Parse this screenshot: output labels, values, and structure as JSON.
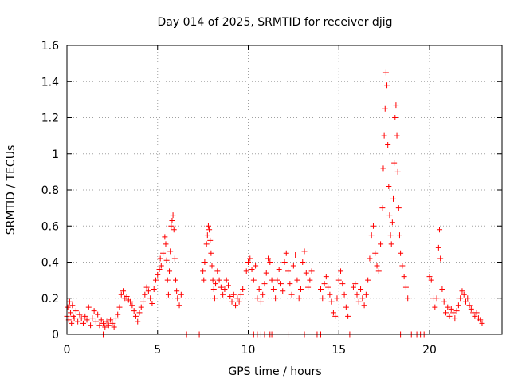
{
  "chart_data": {
    "type": "scatter",
    "title": "Day 014 of 2025, SRMTID for receiver djig",
    "xlabel": "GPS time / hours",
    "ylabel": "SRMTID / TECUs",
    "xlim": [
      0,
      24
    ],
    "ylim": [
      0,
      1.6
    ],
    "xticks": [
      0,
      5,
      10,
      15,
      20
    ],
    "xtick_labels": [
      "0",
      "5",
      "10",
      "15",
      "20"
    ],
    "yticks": [
      0,
      0.2,
      0.4,
      0.6,
      0.8,
      1.0,
      1.2,
      1.4,
      1.6
    ],
    "ytick_labels": [
      "0",
      "0.2",
      "0.4",
      "0.6",
      "0.8",
      "1",
      "1.2",
      "1.4",
      "1.6"
    ],
    "grid": true,
    "marker": "+",
    "series": [
      {
        "name": "SRMTID",
        "color": "#ff0000",
        "points": [
          [
            0.0,
            0.1
          ],
          [
            0.05,
            0.15
          ],
          [
            0.1,
            0.08
          ],
          [
            0.15,
            0.18
          ],
          [
            0.2,
            0.12
          ],
          [
            0.25,
            0.06
          ],
          [
            0.3,
            0.16
          ],
          [
            0.35,
            0.1
          ],
          [
            0.4,
            0.09
          ],
          [
            0.5,
            0.13
          ],
          [
            0.6,
            0.07
          ],
          [
            0.7,
            0.11
          ],
          [
            0.8,
            0.09
          ],
          [
            0.9,
            0.06
          ],
          [
            1.0,
            0.1
          ],
          [
            1.1,
            0.08
          ],
          [
            1.2,
            0.15
          ],
          [
            1.3,
            0.05
          ],
          [
            1.4,
            0.09
          ],
          [
            1.5,
            0.13
          ],
          [
            1.6,
            0.07
          ],
          [
            1.7,
            0.11
          ],
          [
            1.8,
            0.05
          ],
          [
            1.9,
            0.08
          ],
          [
            2.0,
            0.06
          ],
          [
            2.1,
            0.04
          ],
          [
            2.2,
            0.07
          ],
          [
            2.3,
            0.05
          ],
          [
            2.4,
            0.08
          ],
          [
            2.5,
            0.06
          ],
          [
            2.6,
            0.04
          ],
          [
            2.7,
            0.09
          ],
          [
            2.8,
            0.11
          ],
          [
            2.9,
            0.15
          ],
          [
            3.0,
            0.22
          ],
          [
            3.1,
            0.24
          ],
          [
            3.2,
            0.2
          ],
          [
            3.3,
            0.21
          ],
          [
            3.4,
            0.19
          ],
          [
            3.5,
            0.18
          ],
          [
            3.6,
            0.16
          ],
          [
            3.7,
            0.13
          ],
          [
            3.8,
            0.1
          ],
          [
            3.9,
            0.07
          ],
          [
            4.0,
            0.12
          ],
          [
            4.1,
            0.15
          ],
          [
            4.2,
            0.18
          ],
          [
            4.3,
            0.22
          ],
          [
            4.4,
            0.26
          ],
          [
            4.5,
            0.24
          ],
          [
            4.6,
            0.2
          ],
          [
            4.7,
            0.17
          ],
          [
            4.8,
            0.25
          ],
          [
            4.9,
            0.3
          ],
          [
            5.0,
            0.33
          ],
          [
            5.1,
            0.36
          ],
          [
            5.15,
            0.42
          ],
          [
            5.2,
            0.38
          ],
          [
            5.3,
            0.45
          ],
          [
            5.4,
            0.54
          ],
          [
            5.45,
            0.5
          ],
          [
            5.5,
            0.41
          ],
          [
            5.55,
            0.3
          ],
          [
            5.6,
            0.22
          ],
          [
            5.65,
            0.35
          ],
          [
            5.7,
            0.46
          ],
          [
            5.75,
            0.6
          ],
          [
            5.8,
            0.63
          ],
          [
            5.85,
            0.66
          ],
          [
            5.9,
            0.58
          ],
          [
            5.95,
            0.42
          ],
          [
            6.0,
            0.3
          ],
          [
            6.05,
            0.24
          ],
          [
            6.1,
            0.2
          ],
          [
            6.2,
            0.16
          ],
          [
            6.3,
            0.22
          ],
          [
            7.5,
            0.35
          ],
          [
            7.55,
            0.3
          ],
          [
            7.6,
            0.4
          ],
          [
            7.7,
            0.5
          ],
          [
            7.75,
            0.55
          ],
          [
            7.8,
            0.6
          ],
          [
            7.85,
            0.58
          ],
          [
            7.9,
            0.52
          ],
          [
            7.95,
            0.45
          ],
          [
            8.0,
            0.38
          ],
          [
            8.05,
            0.3
          ],
          [
            8.1,
            0.25
          ],
          [
            8.15,
            0.2
          ],
          [
            8.2,
            0.28
          ],
          [
            8.3,
            0.35
          ],
          [
            8.4,
            0.3
          ],
          [
            8.5,
            0.26
          ],
          [
            8.6,
            0.22
          ],
          [
            8.7,
            0.25
          ],
          [
            8.8,
            0.3
          ],
          [
            8.9,
            0.27
          ],
          [
            9.0,
            0.21
          ],
          [
            9.1,
            0.18
          ],
          [
            9.2,
            0.22
          ],
          [
            9.3,
            0.16
          ],
          [
            9.4,
            0.2
          ],
          [
            9.5,
            0.18
          ],
          [
            9.6,
            0.22
          ],
          [
            9.7,
            0.25
          ],
          [
            9.9,
            0.35
          ],
          [
            10.0,
            0.4
          ],
          [
            10.1,
            0.42
          ],
          [
            10.2,
            0.36
          ],
          [
            10.3,
            0.3
          ],
          [
            10.4,
            0.38
          ],
          [
            10.5,
            0.2
          ],
          [
            10.6,
            0.25
          ],
          [
            10.7,
            0.18
          ],
          [
            10.8,
            0.22
          ],
          [
            10.9,
            0.28
          ],
          [
            11.0,
            0.34
          ],
          [
            11.1,
            0.42
          ],
          [
            11.2,
            0.4
          ],
          [
            11.3,
            0.3
          ],
          [
            11.4,
            0.25
          ],
          [
            11.5,
            0.2
          ],
          [
            11.6,
            0.3
          ],
          [
            11.7,
            0.36
          ],
          [
            11.8,
            0.28
          ],
          [
            11.9,
            0.24
          ],
          [
            12.0,
            0.4
          ],
          [
            12.1,
            0.45
          ],
          [
            12.2,
            0.35
          ],
          [
            12.3,
            0.28
          ],
          [
            12.4,
            0.22
          ],
          [
            12.5,
            0.38
          ],
          [
            12.6,
            0.44
          ],
          [
            12.7,
            0.3
          ],
          [
            12.8,
            0.2
          ],
          [
            12.9,
            0.25
          ],
          [
            13.0,
            0.4
          ],
          [
            13.1,
            0.46
          ],
          [
            13.2,
            0.34
          ],
          [
            13.3,
            0.26
          ],
          [
            13.4,
            0.3
          ],
          [
            13.5,
            0.35
          ],
          [
            14.0,
            0.25
          ],
          [
            14.1,
            0.2
          ],
          [
            14.2,
            0.28
          ],
          [
            14.3,
            0.32
          ],
          [
            14.4,
            0.26
          ],
          [
            14.5,
            0.22
          ],
          [
            14.6,
            0.18
          ],
          [
            14.7,
            0.12
          ],
          [
            14.8,
            0.1
          ],
          [
            14.9,
            0.2
          ],
          [
            15.0,
            0.3
          ],
          [
            15.1,
            0.35
          ],
          [
            15.2,
            0.28
          ],
          [
            15.3,
            0.22
          ],
          [
            15.4,
            0.15
          ],
          [
            15.5,
            0.1
          ],
          [
            15.8,
            0.26
          ],
          [
            15.9,
            0.28
          ],
          [
            16.0,
            0.22
          ],
          [
            16.1,
            0.18
          ],
          [
            16.2,
            0.25
          ],
          [
            16.3,
            0.2
          ],
          [
            16.4,
            0.16
          ],
          [
            16.5,
            0.22
          ],
          [
            16.6,
            0.3
          ],
          [
            16.7,
            0.42
          ],
          [
            16.8,
            0.55
          ],
          [
            16.9,
            0.6
          ],
          [
            17.0,
            0.45
          ],
          [
            17.1,
            0.38
          ],
          [
            17.2,
            0.35
          ],
          [
            17.3,
            0.5
          ],
          [
            17.4,
            0.7
          ],
          [
            17.45,
            0.92
          ],
          [
            17.5,
            1.1
          ],
          [
            17.55,
            1.25
          ],
          [
            17.6,
            1.45
          ],
          [
            17.65,
            1.38
          ],
          [
            17.7,
            1.05
          ],
          [
            17.75,
            0.82
          ],
          [
            17.8,
            0.66
          ],
          [
            17.85,
            0.55
          ],
          [
            17.9,
            0.5
          ],
          [
            17.95,
            0.62
          ],
          [
            18.0,
            0.75
          ],
          [
            18.05,
            0.95
          ],
          [
            18.1,
            1.2
          ],
          [
            18.15,
            1.27
          ],
          [
            18.2,
            1.1
          ],
          [
            18.25,
            0.9
          ],
          [
            18.3,
            0.7
          ],
          [
            18.35,
            0.55
          ],
          [
            18.4,
            0.45
          ],
          [
            18.5,
            0.38
          ],
          [
            18.6,
            0.32
          ],
          [
            18.7,
            0.26
          ],
          [
            18.8,
            0.2
          ],
          [
            20.0,
            0.32
          ],
          [
            20.1,
            0.3
          ],
          [
            20.2,
            0.2
          ],
          [
            20.3,
            0.15
          ],
          [
            20.4,
            0.2
          ],
          [
            20.5,
            0.48
          ],
          [
            20.55,
            0.58
          ],
          [
            20.6,
            0.42
          ],
          [
            20.7,
            0.25
          ],
          [
            20.8,
            0.18
          ],
          [
            20.9,
            0.12
          ],
          [
            21.0,
            0.15
          ],
          [
            21.1,
            0.1
          ],
          [
            21.2,
            0.14
          ],
          [
            21.3,
            0.12
          ],
          [
            21.4,
            0.09
          ],
          [
            21.5,
            0.13
          ],
          [
            21.6,
            0.16
          ],
          [
            21.7,
            0.2
          ],
          [
            21.8,
            0.24
          ],
          [
            21.9,
            0.22
          ],
          [
            22.0,
            0.18
          ],
          [
            22.1,
            0.2
          ],
          [
            22.2,
            0.16
          ],
          [
            22.3,
            0.14
          ],
          [
            22.4,
            0.12
          ],
          [
            22.5,
            0.1
          ],
          [
            22.6,
            0.12
          ],
          [
            22.7,
            0.09
          ],
          [
            22.8,
            0.08
          ],
          [
            22.9,
            0.06
          ],
          [
            6.6,
            0.0
          ],
          [
            7.3,
            0.0
          ],
          [
            10.3,
            0.0
          ],
          [
            10.5,
            0.0
          ],
          [
            10.7,
            0.0
          ],
          [
            10.9,
            0.0
          ],
          [
            11.2,
            0.0
          ],
          [
            11.3,
            0.0
          ],
          [
            12.2,
            0.0
          ],
          [
            13.1,
            0.0
          ],
          [
            13.8,
            0.0
          ],
          [
            14.0,
            0.0
          ],
          [
            15.6,
            0.0
          ],
          [
            18.4,
            0.0
          ],
          [
            19.0,
            0.0
          ],
          [
            19.3,
            0.0
          ],
          [
            19.5,
            0.0
          ],
          [
            19.7,
            0.0
          ],
          [
            2.0,
            0.0
          ]
        ]
      }
    ]
  }
}
